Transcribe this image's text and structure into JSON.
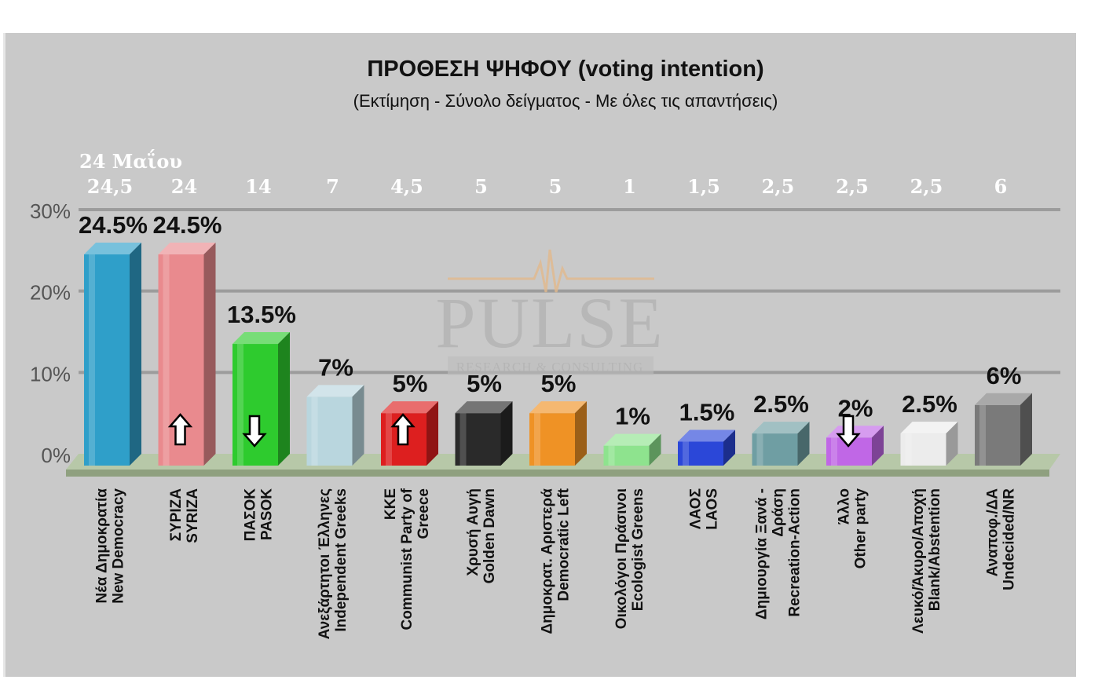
{
  "chart_data": {
    "type": "bar",
    "title": "ΠΡΟΘΕΣΗ ΨΗΦΟΥ (voting intention)",
    "subtitle": "(Εκτίμηση - Σύνολο δείγματος - Με όλες τις απαντήσεις)",
    "ylim": [
      0,
      30
    ],
    "yticks": [
      "0%",
      "10%",
      "20%",
      "30%"
    ],
    "grid": true,
    "previous_header": "24 Μαΐου",
    "categories": [
      [
        "Νέα Δημοκρατία",
        "New Democracy"
      ],
      [
        "ΣΥΡΙΖΑ",
        "SYRIZA"
      ],
      [
        "ΠΑΣΟΚ",
        "PASOK"
      ],
      [
        "Ανεξάρτητοι Έλληνες",
        "Independent Greeks"
      ],
      [
        "ΚΚΕ",
        "Communist Party of",
        "Greece"
      ],
      [
        "Χρυσή Αυγή",
        "Golden Dawn"
      ],
      [
        "Δημοκρατ. Αριστερά",
        "Democratic Left"
      ],
      [
        "Οικολόγοι Πράσινοι",
        "Ecologist Greens"
      ],
      [
        "ΛΑΟΣ",
        "LAOS"
      ],
      [
        "Δημιουργία Ξανά -",
        "Δράση",
        "Recreation-Action"
      ],
      [
        "Άλλο",
        "Other party"
      ],
      [
        "Λευκό/Άκυρο/Αποχή",
        "Blank/Abstention"
      ],
      [
        "Αναποφ./ΔΑ",
        "Undecided/NR"
      ]
    ],
    "values": [
      24.5,
      24.5,
      13.5,
      7,
      5,
      5,
      5,
      1,
      1.5,
      2.5,
      2,
      2.5,
      6
    ],
    "value_labels": [
      "24.5%",
      "24.5%",
      "13.5%",
      "7%",
      "5%",
      "5%",
      "5%",
      "1%",
      "1.5%",
      "2.5%",
      "2%",
      "2.5%",
      "6%"
    ],
    "previous_values": [
      "24,5",
      "24",
      "14",
      "7",
      "4,5",
      "5",
      "5",
      "1",
      "1,5",
      "2,5",
      "2,5",
      "2,5",
      "6"
    ],
    "trend_arrows": [
      "",
      "up",
      "down",
      "",
      "up",
      "",
      "",
      "",
      "",
      "",
      "down",
      "",
      ""
    ],
    "colors": [
      "#2f9fc9",
      "#e98a8e",
      "#2ecb2e",
      "#b9d6de",
      "#dd1f1f",
      "#2a2a2a",
      "#ef9225",
      "#8ee38e",
      "#2b47d8",
      "#6f9ea3",
      "#c067e6",
      "#ececec",
      "#7a7a7a"
    ]
  },
  "watermark": {
    "name": "PULSE",
    "tagline": "RESEARCH & CONSULTING"
  }
}
